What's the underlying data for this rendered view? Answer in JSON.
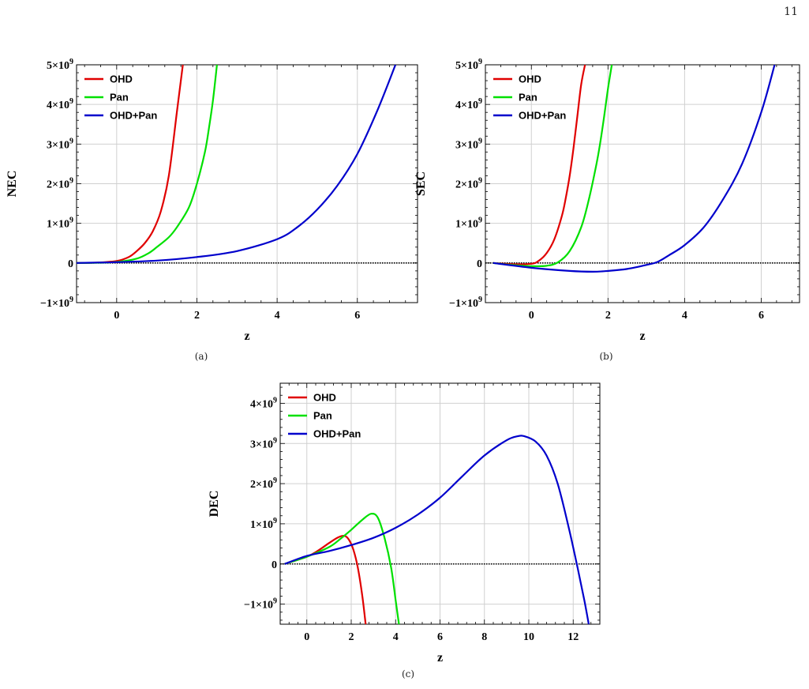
{
  "page_number": "11",
  "colors": {
    "OHD": "#e00000",
    "Pan": "#00e000",
    "OHD+Pan": "#0000cc",
    "zero_line": "#000000",
    "grid": "#d0d0d0"
  },
  "chart_data": [
    {
      "type": "line",
      "caption": "(a)",
      "xlabel": "z",
      "ylabel": "NEC",
      "xlim": [
        -1,
        7.5
      ],
      "ylim": [
        -1000000000,
        5000000000
      ],
      "xticks": [
        0,
        2,
        4,
        6
      ],
      "xtick_labels": [
        "0",
        "2",
        "4",
        "6"
      ],
      "yticks": [
        -1000000000,
        0,
        1000000000,
        2000000000,
        3000000000,
        4000000000,
        5000000000
      ],
      "ytick_labels": [
        {
          "pre": "−1×10",
          "exp": "9"
        },
        {
          "pre": "0",
          "exp": ""
        },
        {
          "pre": "1×10",
          "exp": "9"
        },
        {
          "pre": "2×10",
          "exp": "9"
        },
        {
          "pre": "3×10",
          "exp": "9"
        },
        {
          "pre": "4×10",
          "exp": "9"
        },
        {
          "pre": "5×10",
          "exp": "9"
        }
      ],
      "grid": true,
      "legend_position": "top-left",
      "series": [
        {
          "name": "OHD",
          "x": [
            -1,
            -0.5,
            0,
            0.3,
            0.5,
            0.7,
            0.9,
            1.1,
            1.3,
            1.5,
            1.6,
            1.65
          ],
          "y": [
            0,
            10000000,
            50000000,
            150000000,
            300000000,
            500000000,
            800000000,
            1300000000,
            2200000000,
            3800000000,
            4600000000,
            5000000000
          ]
        },
        {
          "name": "Pan",
          "x": [
            -1,
            -0.5,
            0,
            0.5,
            0.8,
            1.0,
            1.3,
            1.5,
            1.8,
            2.0,
            2.2,
            2.3,
            2.4,
            2.5
          ],
          "y": [
            0,
            5000000,
            25000000,
            110000000,
            250000000,
            400000000,
            650000000,
            900000000,
            1400000000,
            2000000000,
            2800000000,
            3400000000,
            4100000000,
            5000000000
          ]
        },
        {
          "name": "OHD+Pan",
          "x": [
            -1,
            -0.5,
            0,
            1,
            2,
            3,
            4,
            4.5,
            5,
            5.5,
            6,
            6.5,
            6.95
          ],
          "y": [
            0,
            10000000,
            20000000,
            60000000,
            150000000,
            300000000,
            600000000,
            900000000,
            1350000000,
            1950000000,
            2750000000,
            3850000000,
            5000000000
          ]
        }
      ]
    },
    {
      "type": "line",
      "caption": "(b)",
      "xlabel": "z",
      "ylabel": "SEC",
      "xlim": [
        -1.2,
        7
      ],
      "ylim": [
        -1000000000,
        5000000000
      ],
      "xticks": [
        0,
        2,
        4,
        6
      ],
      "xtick_labels": [
        "0",
        "2",
        "4",
        "6"
      ],
      "yticks": [
        -1000000000,
        0,
        1000000000,
        2000000000,
        3000000000,
        4000000000,
        5000000000
      ],
      "ytick_labels": [
        {
          "pre": "−1×10",
          "exp": "9"
        },
        {
          "pre": "0",
          "exp": ""
        },
        {
          "pre": "1×10",
          "exp": "9"
        },
        {
          "pre": "2×10",
          "exp": "9"
        },
        {
          "pre": "3×10",
          "exp": "9"
        },
        {
          "pre": "4×10",
          "exp": "9"
        },
        {
          "pre": "5×10",
          "exp": "9"
        }
      ],
      "grid": true,
      "legend_position": "top-left",
      "series": [
        {
          "name": "OHD",
          "x": [
            -1,
            -0.5,
            0,
            0.2,
            0.4,
            0.6,
            0.8,
            0.9,
            1.0,
            1.1,
            1.2,
            1.3,
            1.4
          ],
          "y": [
            0,
            -30000000,
            -20000000,
            60000000,
            250000000,
            600000000,
            1200000000,
            1650000000,
            2200000000,
            2900000000,
            3700000000,
            4500000000,
            5000000000
          ]
        },
        {
          "name": "Pan",
          "x": [
            -1,
            -0.5,
            0,
            0.4,
            0.7,
            1.0,
            1.3,
            1.5,
            1.7,
            1.8,
            1.9,
            2.0,
            2.1
          ],
          "y": [
            0,
            -50000000,
            -80000000,
            -70000000,
            20000000,
            300000000,
            900000000,
            1600000000,
            2500000000,
            3050000000,
            3700000000,
            4400000000,
            5000000000
          ]
        },
        {
          "name": "OHD+Pan",
          "x": [
            -1,
            0,
            1,
            1.6,
            2,
            2.5,
            3,
            3.3,
            3.6,
            4,
            4.5,
            5,
            5.5,
            6,
            6.35
          ],
          "y": [
            0,
            -120000000,
            -200000000,
            -220000000,
            -200000000,
            -150000000,
            -50000000,
            30000000,
            200000000,
            450000000,
            900000000,
            1600000000,
            2500000000,
            3800000000,
            5000000000
          ]
        }
      ]
    },
    {
      "type": "line",
      "caption": "(c)",
      "xlabel": "z",
      "ylabel": "DEC",
      "xlim": [
        -1.2,
        13.2
      ],
      "ylim": [
        -1500000000,
        4500000000
      ],
      "xticks": [
        0,
        2,
        4,
        6,
        8,
        10,
        12
      ],
      "xtick_labels": [
        "0",
        "2",
        "4",
        "6",
        "8",
        "10",
        "12"
      ],
      "yticks": [
        -1000000000,
        0,
        1000000000,
        2000000000,
        3000000000,
        4000000000
      ],
      "ytick_labels": [
        {
          "pre": "−1×10",
          "exp": "9"
        },
        {
          "pre": "0",
          "exp": ""
        },
        {
          "pre": "1×10",
          "exp": "9"
        },
        {
          "pre": "2×10",
          "exp": "9"
        },
        {
          "pre": "3×10",
          "exp": "9"
        },
        {
          "pre": "4×10",
          "exp": "9"
        }
      ],
      "grid": true,
      "legend_position": "top-left",
      "series": [
        {
          "name": "OHD",
          "x": [
            -1,
            0,
            0.5,
            1.0,
            1.4,
            1.7,
            1.9,
            2.1,
            2.3,
            2.5,
            2.65
          ],
          "y": [
            0,
            180000000,
            330000000,
            520000000,
            660000000,
            700000000,
            600000000,
            350000000,
            -100000000,
            -800000000,
            -1500000000
          ]
        },
        {
          "name": "Pan",
          "x": [
            -1,
            0,
            1,
            1.5,
            2,
            2.5,
            2.9,
            3.2,
            3.5,
            3.8,
            4.0,
            4.15
          ],
          "y": [
            0,
            180000000,
            420000000,
            620000000,
            850000000,
            1100000000,
            1250000000,
            1150000000,
            650000000,
            -100000000,
            -900000000,
            -1500000000
          ]
        },
        {
          "name": "OHD+Pan",
          "x": [
            -1,
            0,
            1,
            2,
            3,
            4,
            5,
            6,
            7,
            8,
            9,
            9.5,
            9.8,
            10.3,
            10.8,
            11.3,
            11.8,
            12.2,
            12.5,
            12.7
          ],
          "y": [
            0,
            200000000,
            320000000,
            470000000,
            650000000,
            900000000,
            1230000000,
            1650000000,
            2180000000,
            2700000000,
            3080000000,
            3180000000,
            3180000000,
            3050000000,
            2700000000,
            2000000000,
            900000000,
            -100000000,
            -900000000,
            -1500000000
          ]
        }
      ]
    }
  ]
}
